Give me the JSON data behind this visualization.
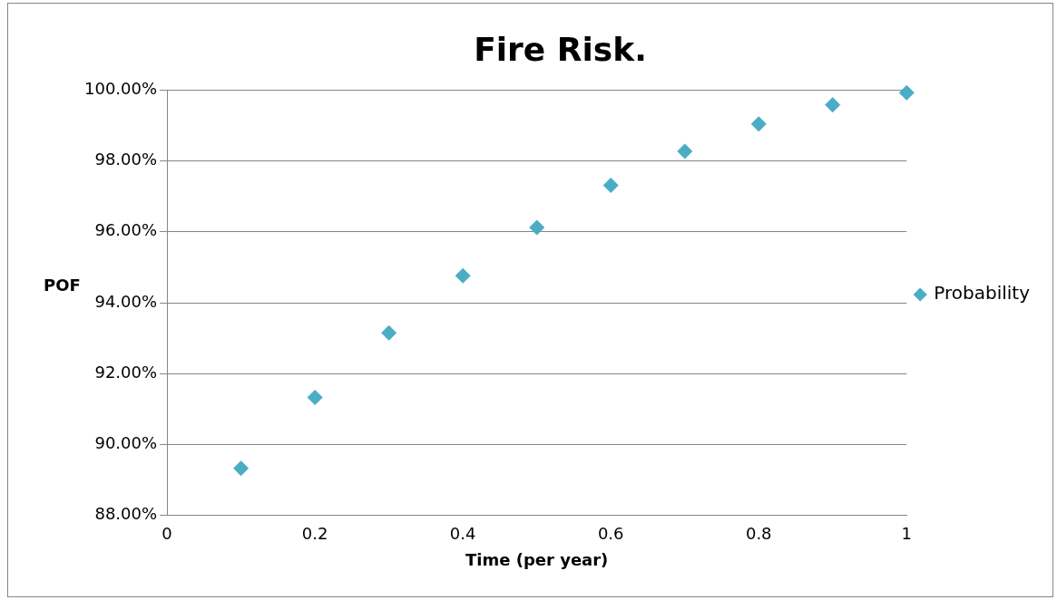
{
  "chart_data": {
    "type": "scatter",
    "title": "Fire Risk.",
    "xlabel": "Time (per year)",
    "ylabel": "POF",
    "x": [
      0.1,
      0.2,
      0.3,
      0.4,
      0.5,
      0.6,
      0.7,
      0.8,
      0.9,
      1.0
    ],
    "series": [
      {
        "name": "Probability",
        "color": "#4bacc6",
        "values": [
          89.33,
          91.33,
          93.15,
          94.76,
          96.12,
          97.31,
          98.27,
          99.04,
          99.58,
          99.92
        ]
      }
    ],
    "xlim": [
      0,
      1
    ],
    "xticks": [
      0,
      0.2,
      0.4,
      0.6,
      0.8,
      1
    ],
    "ylim": [
      88,
      100
    ],
    "yticks": [
      {
        "value": 88,
        "label": "88.00%"
      },
      {
        "value": 90,
        "label": "90.00%"
      },
      {
        "value": 92,
        "label": "92.00%"
      },
      {
        "value": 94,
        "label": "94.00%"
      },
      {
        "value": 96,
        "label": "96.00%"
      },
      {
        "value": 98,
        "label": "98.00%"
      },
      {
        "value": 100,
        "label": "100.00%"
      }
    ],
    "grid": "y",
    "legend": "right",
    "marker": "diamond"
  }
}
